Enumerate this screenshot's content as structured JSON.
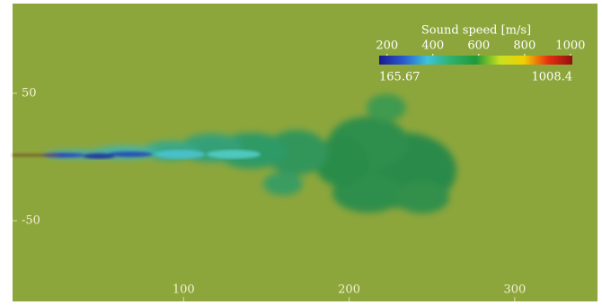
{
  "chart_data": {
    "type": "field",
    "xlim": [
      0,
      350
    ],
    "ylim": [
      -110,
      120
    ],
    "xticks": [
      100,
      200,
      300
    ],
    "yticks": [
      -50,
      50
    ],
    "background": "#8da63c",
    "colorbar": {
      "title": "Sound speed [m/s]",
      "min": 165.67,
      "max": 1008.4,
      "ticks": [
        200,
        400,
        600,
        800,
        1000
      ],
      "colors": [
        "#1a1a8c",
        "#2a5ad0",
        "#3cc4d8",
        "#2fb06a",
        "#1e9a3a",
        "#c8e020",
        "#f0d000",
        "#e83010",
        "#901010"
      ]
    }
  }
}
